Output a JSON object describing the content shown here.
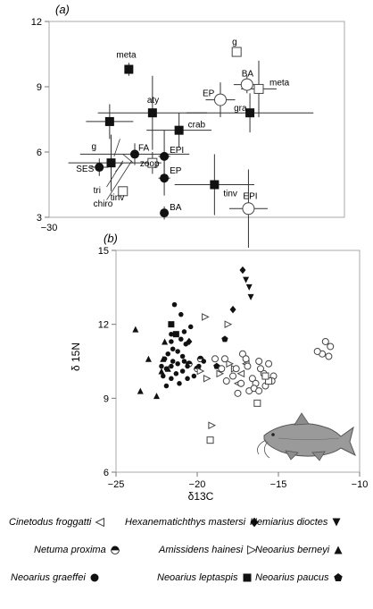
{
  "panel_a": {
    "label": "(a)",
    "chart_data": {
      "type": "scatter",
      "xlim": [
        -30,
        -10
      ],
      "ylim": [
        3,
        12
      ],
      "yticks": [
        3,
        6,
        9,
        12
      ],
      "xtick_labels": [
        "−30"
      ],
      "points": [
        {
          "label": "meta",
          "x": -24.6,
          "y": 9.8,
          "marker": "filled-square",
          "xerr": 0.2,
          "yerr": 0.3
        },
        {
          "label": "aty",
          "x": -23.0,
          "y": 7.8,
          "marker": "filled-square",
          "xerr": 3.7,
          "yerr": 1.7
        },
        {
          "label": "",
          "x": -25.9,
          "y": 7.4,
          "marker": "filled-square",
          "xerr": 1.6,
          "yerr": 0.8
        },
        {
          "label": "crab",
          "x": -21.2,
          "y": 7.0,
          "marker": "filled-square",
          "xerr": 2.2,
          "yerr": 0.8
        },
        {
          "label": "gra",
          "x": -16.4,
          "y": 7.8,
          "marker": "filled-square",
          "xerr": 4.3,
          "yerr": 0.9
        },
        {
          "label": "g",
          "x": -25.8,
          "y": 5.5,
          "marker": "filled-square",
          "xerr": 2.9,
          "yerr": 1.3
        },
        {
          "label": "tinv",
          "x": -18.8,
          "y": 4.5,
          "marker": "filled-square",
          "xerr": 2.7,
          "yerr": 1.4
        },
        {
          "label": "FA",
          "x": -24.2,
          "y": 5.9,
          "marker": "filled-circle",
          "xerr": 3.7,
          "yerr": 0.5
        },
        {
          "label": "SES",
          "x": -26.6,
          "y": 5.3,
          "marker": "filled-circle",
          "xerr": 0.6,
          "yerr": 0.4
        },
        {
          "label": "EPI",
          "x": -22.2,
          "y": 5.8,
          "marker": "filled-circle",
          "xerr": 0.4,
          "yerr": 1.2
        },
        {
          "label": "EP",
          "x": -22.2,
          "y": 4.8,
          "marker": "filled-circle",
          "xerr": 0.4,
          "yerr": 0.8
        },
        {
          "label": "BA",
          "x": -22.2,
          "y": 3.2,
          "marker": "filled-circle",
          "xerr": 0.1,
          "yerr": 0.3
        },
        {
          "label": "zoop",
          "x": -23.0,
          "y": 5.5,
          "marker": "open-square",
          "xerr": 0.6,
          "yerr": 0.5
        },
        {
          "label": "tinv",
          "x": -25.0,
          "y": 4.2,
          "marker": "open-square",
          "xerr": 0.2,
          "yerr": 0.2
        },
        {
          "label": "g",
          "x": -17.3,
          "y": 10.6,
          "marker": "open-square",
          "xerr": 0.2,
          "yerr": 0.2
        },
        {
          "label": "meta",
          "x": -15.8,
          "y": 8.9,
          "marker": "open-square",
          "xerr": 1.2,
          "yerr": 1.3
        },
        {
          "label": "EP",
          "x": -18.4,
          "y": 8.4,
          "marker": "open-circle",
          "xerr": 1.0,
          "yerr": 0.8
        },
        {
          "label": "BA",
          "x": -16.6,
          "y": 9.1,
          "marker": "open-circle",
          "xerr": 0.9,
          "yerr": 0.4
        },
        {
          "label": "EPI",
          "x": -16.5,
          "y": 3.4,
          "marker": "open-circle",
          "xerr": 1.3,
          "yerr": 1.8
        }
      ],
      "extra_labels": [
        {
          "text": "tri",
          "x": -27.0,
          "y": 4.1
        },
        {
          "text": "chiro",
          "x": -27.0,
          "y": 3.5
        }
      ]
    }
  },
  "panel_b": {
    "label": "(b)",
    "chart_data": {
      "type": "scatter",
      "xlim": [
        -25,
        -10
      ],
      "ylim": [
        6,
        15
      ],
      "xticks": [
        -25,
        -20,
        -15,
        -10
      ],
      "yticks": [
        6,
        9,
        12,
        15
      ],
      "xtick_labels": [
        "−25",
        "−20",
        "−15",
        "−10"
      ],
      "ytick_labels": [
        "6",
        "9",
        "12",
        "15"
      ],
      "xlabel": "δ13C",
      "ylabel": "δ 15N",
      "series": [
        {
          "name": "Hexanematichthys mastersi",
          "marker": "diamond-filled",
          "points": [
            [
              -17.2,
              14.2
            ],
            [
              -17.8,
              12.6
            ],
            [
              -20.5,
              11.3
            ]
          ]
        },
        {
          "name": "Hemiarius dioctes",
          "marker": "triangle-down-filled",
          "points": [
            [
              -17.0,
              13.8
            ],
            [
              -16.8,
              13.5
            ],
            [
              -16.7,
              13.1
            ]
          ]
        },
        {
          "name": "Neoarius berneyi",
          "marker": "triangle-up-filled",
          "points": [
            [
              -23.8,
              11.8
            ],
            [
              -22.0,
              11.3
            ],
            [
              -23.0,
              10.6
            ],
            [
              -21.8,
              10.2
            ],
            [
              -23.5,
              9.3
            ],
            [
              -22.5,
              9.1
            ],
            [
              -22.2,
              10.1
            ],
            [
              -22.1,
              10.6
            ]
          ]
        },
        {
          "name": "Neoarius leptaspis",
          "marker": "square-filled",
          "points": [
            [
              -21.6,
              12.0
            ],
            [
              -21.3,
              11.6
            ]
          ]
        },
        {
          "name": "Neoarius paucus",
          "marker": "pentagon-filled",
          "points": [
            [
              -18.8,
              10.3
            ],
            [
              -18.3,
              11.4
            ]
          ]
        },
        {
          "name": "Netuma proxima",
          "marker": "half-circle",
          "points": [
            [
              -20.5,
              10.4
            ],
            [
              -20.0,
              10.2
            ],
            [
              -19.8,
              10.6
            ]
          ]
        },
        {
          "name": "Neoarius graeffei",
          "marker": "circle-filled",
          "points": [
            [
              -21.4,
              12.8
            ],
            [
              -21.0,
              12.4
            ],
            [
              -20.4,
              11.9
            ],
            [
              -21.6,
              11.6
            ],
            [
              -21.0,
              11.4
            ],
            [
              -20.7,
              11.2
            ],
            [
              -21.5,
              11.0
            ],
            [
              -21.2,
              10.9
            ],
            [
              -21.8,
              10.8
            ],
            [
              -20.9,
              10.7
            ],
            [
              -22.0,
              10.6
            ],
            [
              -21.5,
              10.5
            ],
            [
              -20.8,
              10.5
            ],
            [
              -21.2,
              10.4
            ],
            [
              -20.6,
              10.3
            ],
            [
              -21.6,
              10.3
            ],
            [
              -21.9,
              10.2
            ],
            [
              -20.9,
              10.1
            ],
            [
              -21.3,
              10.0
            ],
            [
              -22.1,
              9.9
            ],
            [
              -21.6,
              9.8
            ],
            [
              -20.6,
              9.8
            ],
            [
              -21.1,
              9.6
            ],
            [
              -21.9,
              9.5
            ],
            [
              -19.9,
              10.3
            ],
            [
              -19.6,
              10.5
            ],
            [
              -20.2,
              9.9
            ],
            [
              -21.6,
              11.3
            ],
            [
              -20.8,
              11.7
            ],
            [
              -22.2,
              10.3
            ]
          ]
        },
        {
          "name": "Amissidens hainesi",
          "marker": "triangle-right-open",
          "points": [
            [
              -19.5,
              12.3
            ],
            [
              -18.1,
              12.0
            ],
            [
              -19.8,
              10.1
            ],
            [
              -19.4,
              9.8
            ],
            [
              -18.0,
              10.4
            ],
            [
              -18.6,
              10.0
            ],
            [
              -19.1,
              7.9
            ],
            [
              -17.7,
              10.2
            ]
          ]
        },
        {
          "name": "Cinetodus froggatti",
          "marker": "triangle-left-open",
          "points": [
            [
              -17.5,
              9.6
            ],
            [
              -17.0,
              10.4
            ],
            [
              -17.3,
              10.0
            ]
          ]
        },
        {
          "name": "Neoarius paucus (open)",
          "marker": "circle-open",
          "points": [
            [
              -18.3,
              10.6
            ],
            [
              -17.6,
              10.2
            ],
            [
              -17.2,
              10.8
            ],
            [
              -16.9,
              10.3
            ],
            [
              -16.6,
              9.8
            ],
            [
              -16.2,
              10.5
            ],
            [
              -15.9,
              10.0
            ],
            [
              -15.6,
              10.4
            ],
            [
              -15.3,
              9.9
            ],
            [
              -16.4,
              9.6
            ],
            [
              -17.8,
              9.9
            ],
            [
              -18.5,
              10.2
            ],
            [
              -16.8,
              9.3
            ],
            [
              -17.3,
              9.6
            ],
            [
              -15.8,
              9.5
            ],
            [
              -16.5,
              9.4
            ],
            [
              -15.4,
              9.7
            ],
            [
              -18.9,
              10.6
            ],
            [
              -17.0,
              10.6
            ],
            [
              -17.5,
              9.2
            ],
            [
              -16.1,
              10.2
            ],
            [
              -18.2,
              9.7
            ],
            [
              -16.2,
              9.3
            ],
            [
              -12.1,
              11.3
            ],
            [
              -11.8,
              11.1
            ],
            [
              -12.3,
              10.8
            ],
            [
              -11.9,
              10.7
            ],
            [
              -12.6,
              10.9
            ]
          ]
        },
        {
          "name": "open-squares",
          "marker": "square-open",
          "points": [
            [
              -15.6,
              9.7
            ],
            [
              -15.8,
              9.9
            ],
            [
              -16.3,
              8.8
            ],
            [
              -19.2,
              7.3
            ]
          ]
        }
      ]
    }
  },
  "legend": {
    "rows": [
      [
        {
          "name": "Cinetodus froggatti",
          "marker": "triangle-left-open"
        },
        {
          "name": "Hexanematichthys mastersi",
          "marker": "diamond-filled"
        },
        {
          "name": "Hemiarius dioctes",
          "marker": "triangle-down-filled"
        }
      ],
      [
        {
          "name": "Netuma proxima",
          "marker": "half-circle"
        },
        {
          "name": "Amissidens hainesi",
          "marker": "triangle-right-open"
        },
        {
          "name": "Neoarius berneyi",
          "marker": "triangle-up-filled"
        }
      ],
      [
        {
          "name": "Neoarius graeffei",
          "marker": "circle-filled"
        },
        {
          "name": "Neoarius leptaspis",
          "marker": "square-filled"
        },
        {
          "name": "Neoarius paucus",
          "marker": "pentagon-filled"
        }
      ]
    ]
  }
}
